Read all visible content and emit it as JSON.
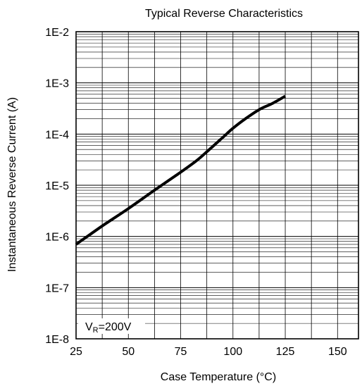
{
  "chart_data": {
    "type": "line",
    "title": "Typical Reverse Characteristics",
    "xlabel": "Case Temperature (°C)",
    "ylabel": "Instantaneous Reverse Current (A)",
    "xlim": [
      25,
      160
    ],
    "ylim": [
      1e-08,
      0.01
    ],
    "yscale": "log",
    "grid": true,
    "x_ticks": [
      25,
      50,
      75,
      100,
      125,
      150
    ],
    "x_tick_labels": [
      "25",
      "50",
      "75",
      "100",
      "125",
      "150"
    ],
    "y_ticks": [
      1e-08,
      1e-07,
      1e-06,
      1e-05,
      0.0001,
      0.001,
      0.01
    ],
    "y_tick_labels": [
      "1E-8",
      "1E-7",
      "1E-6",
      "1E-5",
      "1E-4",
      "1E-3",
      "1E-2"
    ],
    "annotation": {
      "prefix": "V",
      "subscript": "R",
      "suffix": "=200V"
    },
    "series": [
      {
        "x": [
          25,
          37.5,
          50,
          62.5,
          75,
          82.5,
          87.5,
          95,
          100,
          106,
          112.5,
          119,
          125
        ],
        "y": [
          7e-07,
          1.6e-06,
          3.5e-06,
          8e-06,
          1.8e-05,
          3e-05,
          4.5e-05,
          8.5e-05,
          0.00013,
          0.0002,
          0.0003,
          0.0004,
          0.00055
        ]
      }
    ]
  }
}
